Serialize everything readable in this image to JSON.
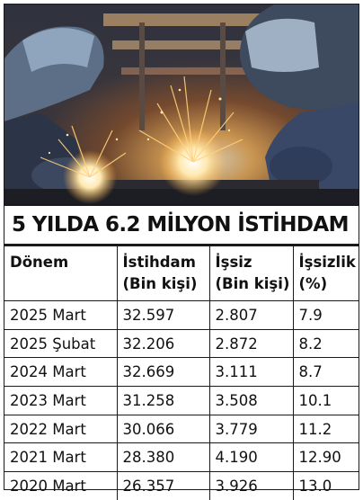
{
  "headline": "5 YILDA 6.2 MİLYON İSTİHDAM",
  "table": {
    "headers": [
      [
        "Dönem"
      ],
      [
        "İstihdam",
        "(Bin kişi)"
      ],
      [
        "İşsiz",
        "(Bin kişi)"
      ],
      [
        "İşsizlik",
        "(%)"
      ]
    ],
    "rows": [
      [
        "2025 Mart",
        "32.597",
        "2.807",
        "7.9"
      ],
      [
        "2025 Şubat",
        "32.206",
        "2.872",
        "8.2"
      ],
      [
        "2024 Mart",
        "32.669",
        "3.111",
        "8.7"
      ],
      [
        "2023 Mart",
        "31.258",
        "3.508",
        "10.1"
      ],
      [
        "2022 Mart",
        "30.066",
        "3.779",
        "11.2"
      ],
      [
        "2021 Mart",
        "28.380",
        "4.190",
        "12.90"
      ],
      [
        "2020 Mart",
        "26.357",
        "3.926",
        "13.0"
      ]
    ]
  }
}
